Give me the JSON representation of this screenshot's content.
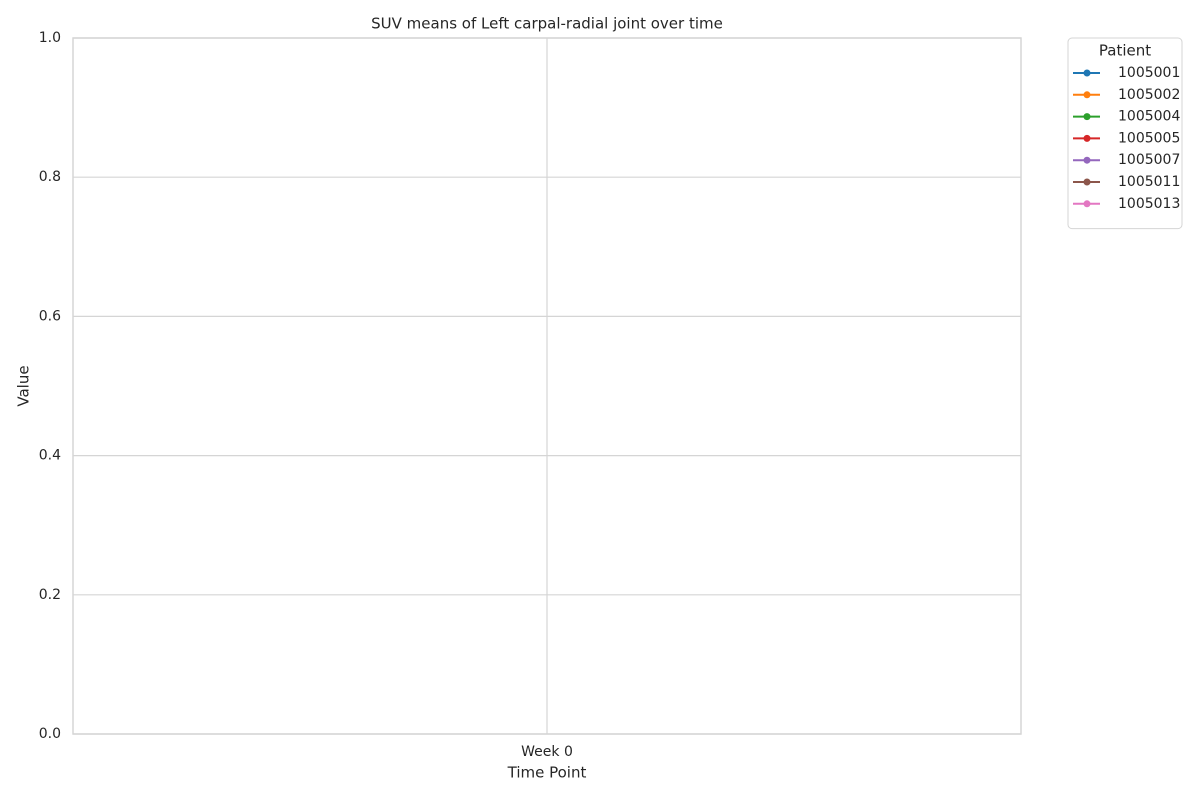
{
  "chart_data": {
    "type": "line",
    "title": "SUV means of Left carpal-radial joint over time",
    "x_label": "Time Point",
    "y_label": "Value",
    "legend_title": "Patient",
    "legend": "outside-upper-right",
    "grid": true,
    "categories": [
      "Week 0"
    ],
    "series": [
      {
        "name": "1005001",
        "color": "#1f77b4",
        "values": [
          null
        ]
      },
      {
        "name": "1005002",
        "color": "#ff7f0e",
        "values": [
          null
        ]
      },
      {
        "name": "1005004",
        "color": "#2ca02c",
        "values": [
          null
        ]
      },
      {
        "name": "1005005",
        "color": "#d62728",
        "values": [
          null
        ]
      },
      {
        "name": "1005007",
        "color": "#9467bd",
        "values": [
          null
        ]
      },
      {
        "name": "1005011",
        "color": "#8c564b",
        "values": [
          null
        ]
      },
      {
        "name": "1005013",
        "color": "#e377c2",
        "values": [
          null
        ]
      }
    ],
    "ylim": [
      0,
      1
    ],
    "yticks": [
      {
        "value": 0,
        "label": "0.0"
      },
      0.2,
      0.4,
      0.6,
      0.8,
      {
        "value": 1,
        "label": "1.0"
      }
    ]
  }
}
